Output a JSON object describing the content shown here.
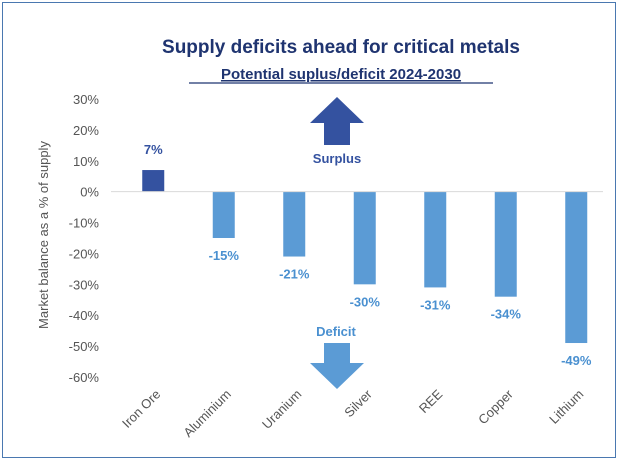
{
  "chart_data": {
    "type": "bar",
    "title": "Supply deficits ahead for critical metals",
    "subtitle": "Potential suplus/deficit 2024-2030",
    "ylabel": "Market balance as a % of supply",
    "xlabel": "",
    "ylim": [
      -60,
      30
    ],
    "yticks": [
      "30%",
      "20%",
      "10%",
      "0%",
      "-10%",
      "-20%",
      "-30%",
      "-40%",
      "-50%",
      "-60%"
    ],
    "categories": [
      "Iron Ore",
      "Aluminium",
      "Uranium",
      "Silver",
      "REE",
      "Copper",
      "Lithium"
    ],
    "values": [
      7,
      -15,
      -21,
      -30,
      -31,
      -34,
      -49
    ],
    "data_labels": [
      "7%",
      "-15%",
      "-21%",
      "-30%",
      "-31%",
      "-34%",
      "-49%"
    ],
    "grid": false,
    "legend": "none",
    "annotations": {
      "surplus": "Surplus",
      "deficit": "Deficit"
    },
    "colors": {
      "positive_bar": "#3452a0",
      "negative_bar": "#5b9bd5",
      "title": "#1f3470",
      "positive_label": "#3452a0",
      "negative_label": "#4a90d0",
      "surplus_arrow": "#3452a0",
      "deficit_arrow": "#5b9bd5"
    }
  }
}
